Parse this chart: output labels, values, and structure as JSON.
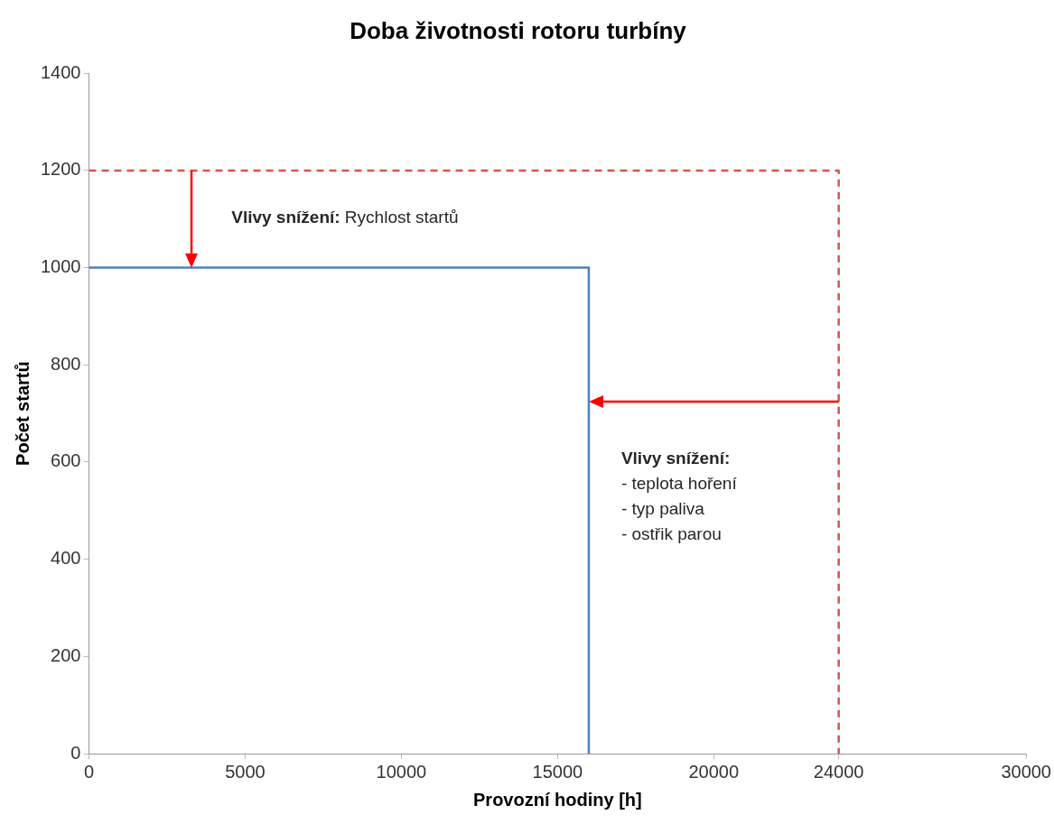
{
  "chart_data": {
    "type": "line",
    "title": "Doba životnosti rotoru turbíny",
    "xlabel": "Provozní hodiny [h]",
    "ylabel": "Počet startů",
    "series": [
      {
        "color": "#4f81bd",
        "x": [
          0,
          16000,
          16000
        ],
        "values": [
          1000,
          1000,
          0
        ],
        "line_style": "solid"
      },
      {
        "color": "#d9534f",
        "x": [
          0,
          24000,
          24000
        ],
        "values": [
          1200,
          1200,
          0
        ],
        "line_style": "dashed"
      }
    ],
    "xlim": [
      0,
      30000
    ],
    "xticks": [
      0,
      5000,
      10000,
      15000,
      20000,
      24000,
      30000
    ],
    "ylim": [
      0,
      1400
    ],
    "yticks": [
      0,
      200,
      400,
      600,
      800,
      1000,
      1200,
      1400
    ],
    "grid": false,
    "legend": false,
    "marker": "none",
    "annotations": [
      "Vlivy snížení: Rychlost startů",
      "Vlivy snížení:\n- teplota hoření\n- typ paliva\n- ostřik parou"
    ]
  }
}
